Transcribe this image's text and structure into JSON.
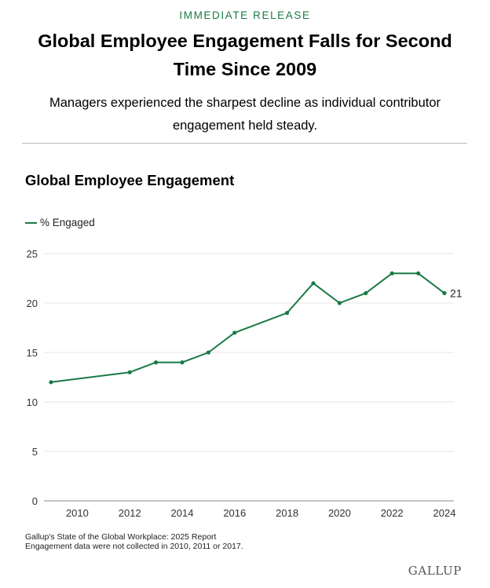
{
  "header": {
    "kicker": "IMMEDIATE RELEASE",
    "headline": "Global Employee Engagement Falls for Second Time Since 2009",
    "subhead": "Managers experienced the sharpest decline as individual contributor engagement held steady."
  },
  "chart_data": {
    "type": "line",
    "title": "Global Employee Engagement",
    "xlabel": "",
    "ylabel": "",
    "series": [
      {
        "name": "% Engaged",
        "color": "#1a7a45",
        "x": [
          2009,
          2012,
          2013,
          2014,
          2015,
          2016,
          2018,
          2019,
          2020,
          2021,
          2022,
          2023,
          2024
        ],
        "values": [
          12,
          13,
          14,
          14,
          15,
          17,
          19,
          22,
          20,
          21,
          23,
          23,
          21
        ]
      }
    ],
    "end_label": "21",
    "xlim": [
      2009,
      2024
    ],
    "xticks": [
      "2010",
      "2012",
      "2014",
      "2016",
      "2018",
      "2020",
      "2022",
      "2024"
    ],
    "ylim": [
      0,
      25
    ],
    "yticks": [
      "0",
      "5",
      "10",
      "15",
      "20",
      "25"
    ],
    "grid": true,
    "legend_position": "top-left"
  },
  "footer": {
    "source_line1": "Gallup's State of the Global Workplace: 2025 Report",
    "source_line2": "Engagement data were not collected in 2010, 2011 or 2017.",
    "brand": "GALLUP"
  }
}
